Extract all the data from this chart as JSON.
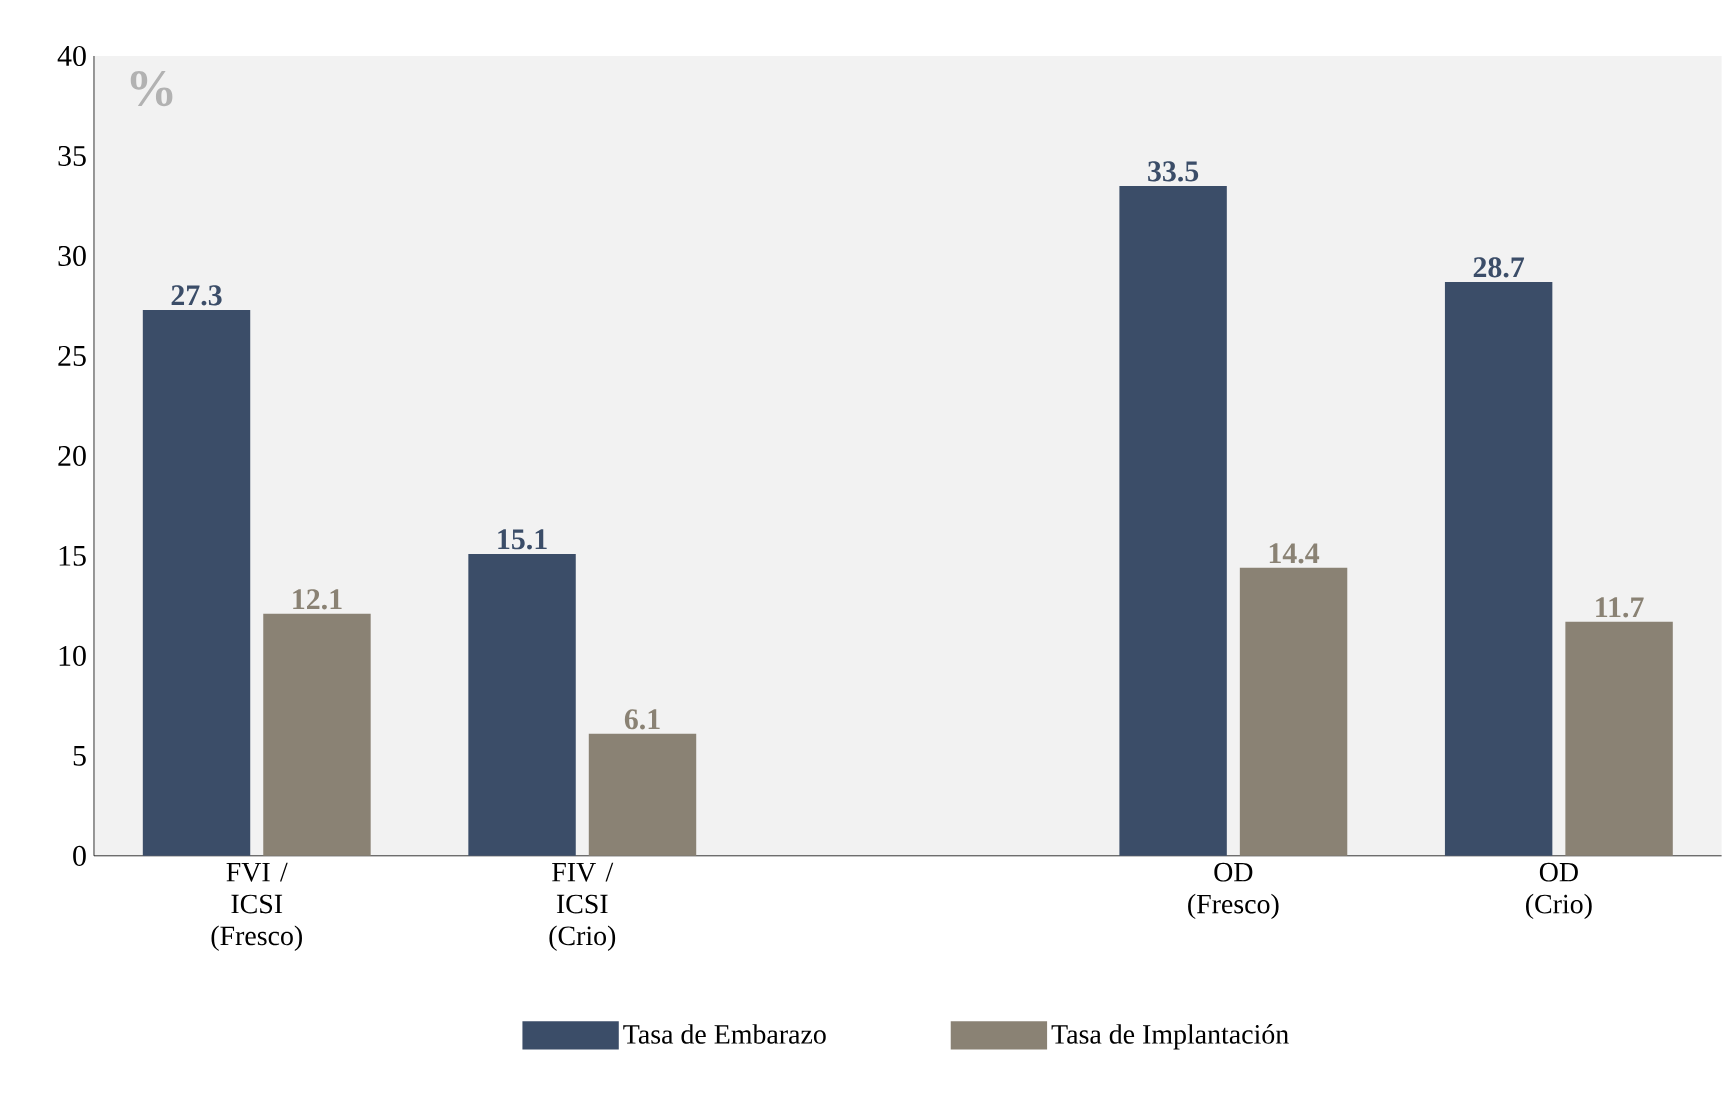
{
  "chart_data": {
    "type": "bar",
    "categories": [
      "FVI / ICSI (Fresco)",
      "FIV / ICSI (Crio)",
      null,
      "OD (Fresco)",
      "OD (Crio)"
    ],
    "series": [
      {
        "name": "Tasa de Embarazo",
        "color": "#3b4d68",
        "values": [
          27.3,
          15.1,
          null,
          33.5,
          28.7
        ]
      },
      {
        "name": "Tasa de Implantación",
        "color": "#8a8274",
        "values": [
          12.1,
          6.1,
          null,
          14.4,
          11.7
        ]
      }
    ],
    "ylim": [
      0,
      40
    ],
    "yticks": [
      0,
      5,
      10,
      15,
      20,
      25,
      30,
      35,
      40
    ],
    "data_labels": true,
    "legend": "bottom",
    "annotations": [
      "%"
    ]
  }
}
